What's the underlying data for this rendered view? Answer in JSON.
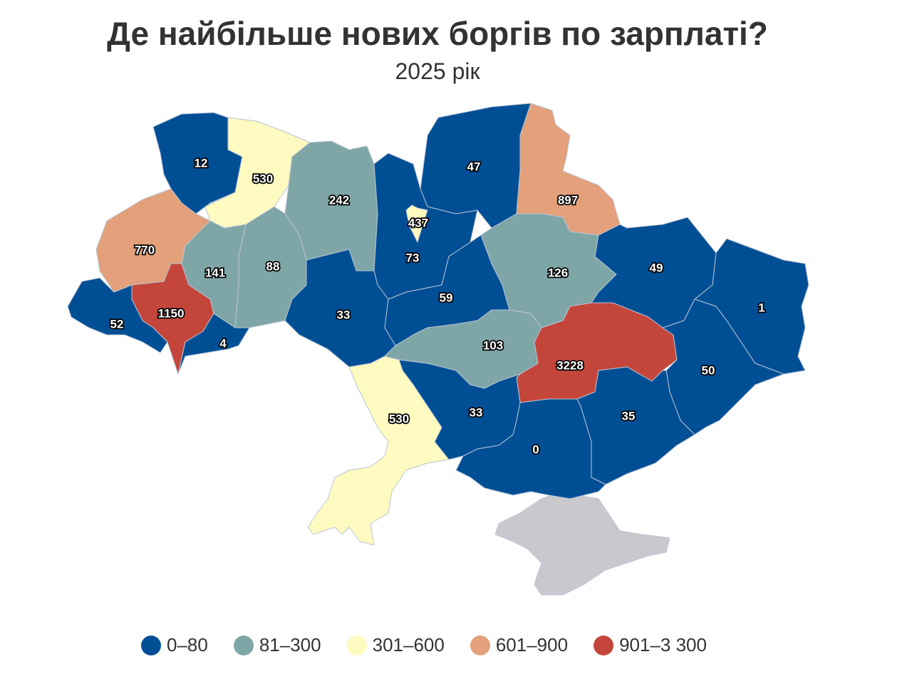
{
  "title": "Де найбільше нових боргів по зарплаті?",
  "subtitle": "2025 рік",
  "colors": {
    "c1": "#004f95",
    "c2": "#7fa6a6",
    "c3": "#fffac0",
    "c4": "#e3a07a",
    "c5": "#c4463a",
    "no_data": "#c9c9cd"
  },
  "legend": [
    {
      "label": "0–80",
      "color": "#004f95"
    },
    {
      "label": "81–300",
      "color": "#7fa6a6"
    },
    {
      "label": "301–600",
      "color": "#fffac0"
    },
    {
      "label": "601–900",
      "color": "#e3a07a"
    },
    {
      "label": "901–3 300",
      "color": "#c4463a"
    }
  ],
  "regions": [
    {
      "name": "volyn",
      "value": "12",
      "cls": "c1"
    },
    {
      "name": "rivne",
      "value": "530",
      "cls": "c3"
    },
    {
      "name": "zhytomyr",
      "value": "242",
      "cls": "c2"
    },
    {
      "name": "kyiv-oblast",
      "value": "73",
      "cls": "c1"
    },
    {
      "name": "kyiv-city",
      "value": "437",
      "cls": "c3"
    },
    {
      "name": "chernihiv",
      "value": "47",
      "cls": "c1"
    },
    {
      "name": "sumy",
      "value": "897",
      "cls": "c4"
    },
    {
      "name": "lviv",
      "value": "770",
      "cls": "c4"
    },
    {
      "name": "ternopil",
      "value": "141",
      "cls": "c2"
    },
    {
      "name": "khmelnytskyi",
      "value": "88",
      "cls": "c2"
    },
    {
      "name": "ivano-frankivsk",
      "value": "1150",
      "cls": "c5"
    },
    {
      "name": "zakarpattia",
      "value": "52",
      "cls": "c1"
    },
    {
      "name": "chernivtsi",
      "value": "4",
      "cls": "c1"
    },
    {
      "name": "vinnytsia",
      "value": "33",
      "cls": "c1"
    },
    {
      "name": "cherkasy",
      "value": "59",
      "cls": "c1"
    },
    {
      "name": "poltava",
      "value": "126",
      "cls": "c2"
    },
    {
      "name": "kharkiv",
      "value": "49",
      "cls": "c1"
    },
    {
      "name": "luhansk",
      "value": "1",
      "cls": "c1"
    },
    {
      "name": "kirovohrad",
      "value": "103",
      "cls": "c2"
    },
    {
      "name": "dnipropetrovsk",
      "value": "3228",
      "cls": "c5"
    },
    {
      "name": "donetsk",
      "value": "50",
      "cls": "c1"
    },
    {
      "name": "zaporizhzhia",
      "value": "35",
      "cls": "c1"
    },
    {
      "name": "kherson",
      "value": "0",
      "cls": "c1"
    },
    {
      "name": "mykolaiv",
      "value": "33",
      "cls": "c1"
    },
    {
      "name": "odesa",
      "value": "530",
      "cls": "c3"
    },
    {
      "name": "crimea",
      "value": null,
      "cls": "no_data"
    }
  ]
}
